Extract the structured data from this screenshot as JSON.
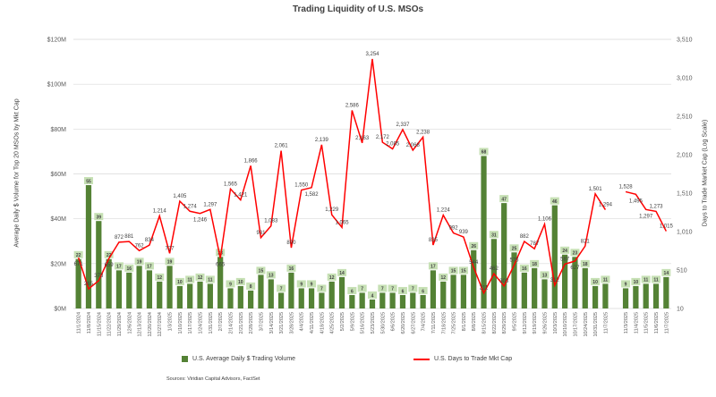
{
  "chart_data": {
    "type": "bar+line",
    "title": "Trading Liquidity of U.S. MSOs",
    "ylabel_left": "Average Daily $ Volume for Top 20 MSOs by Mkt Cap",
    "ylabel_right": "Days to Trade Market Cap (Log Scale)",
    "ylim_left": [
      0,
      120
    ],
    "ylim_right": [
      10,
      3510
    ],
    "left_ticks": [
      "$0M",
      "$20M",
      "$40M",
      "$60M",
      "$80M",
      "$100M",
      "$120M"
    ],
    "right_ticks": [
      "10",
      "510",
      "1,010",
      "1,510",
      "2,010",
      "2,510",
      "3,010",
      "3,510"
    ],
    "categories": [
      "11/1/2024",
      "11/8/2024",
      "11/15/2024",
      "11/22/2024",
      "11/29/2024",
      "12/6/2024",
      "12/13/2024",
      "12/20/2024",
      "12/27/2024",
      "1/3/2025",
      "1/10/2025",
      "1/17/2025",
      "1/24/2025",
      "1/31/2025",
      "2/7/2025",
      "2/14/2025",
      "2/21/2025",
      "2/28/2025",
      "3/7/2025",
      "3/14/2025",
      "3/21/2025",
      "3/28/2025",
      "4/4/2025",
      "4/11/2025",
      "4/18/2025",
      "4/25/2025",
      "5/2/2025",
      "5/9/2025",
      "5/16/2025",
      "5/23/2025",
      "5/30/2025",
      "6/6/2025",
      "6/20/2025",
      "6/27/2025",
      "7/4/2025",
      "7/11/2025",
      "7/18/2025",
      "7/25/2025",
      "8/1/2025",
      "8/8/2025",
      "8/15/2025",
      "8/22/2025",
      "8/29/2025",
      "9/5/2025",
      "9/12/2025",
      "9/19/2025",
      "9/26/2025",
      "10/3/2025",
      "10/10/2025",
      "10/17/2025",
      "10/24/2025",
      "10/31/2025",
      "11/7/2025",
      "",
      "11/3/2025",
      "11/4/2025",
      "11/5/2025",
      "11/6/2025",
      "11/7/2025"
    ],
    "series": [
      {
        "name": "U.S. Average Daily $ Trading Volume",
        "type": "bar",
        "axis": "left",
        "color": "#548235",
        "values": [
          22,
          55,
          39,
          22,
          17,
          16,
          19,
          17,
          12,
          19,
          10,
          11,
          12,
          11,
          23,
          9,
          10,
          8,
          15,
          13,
          7,
          16,
          9,
          9,
          7,
          12,
          14,
          6,
          7,
          4,
          7,
          7,
          6,
          7,
          6,
          17,
          12,
          15,
          15,
          26,
          68,
          31,
          47,
          25,
          16,
          18,
          13,
          46,
          24,
          23,
          18,
          10,
          11,
          null,
          9,
          10,
          11,
          11,
          14
        ]
      },
      {
        "name": "U.S. Days to Trade Mkt Cap",
        "type": "line",
        "axis": "right",
        "color": "#ff0000",
        "values": [
          671,
          265,
          373,
          659,
          872,
          881,
          762,
          834,
          1214,
          727,
          1405,
          1274,
          1246,
          1297,
          665,
          1565,
          1421,
          1866,
          931,
          1083,
          2061,
          800,
          1550,
          1582,
          2139,
          1229,
          1065,
          2586,
          2163,
          3254,
          2172,
          2085,
          2337,
          2068,
          2238,
          835,
          1224,
          992,
          939,
          544,
          211,
          462,
          303,
          576,
          882,
          787,
          1106,
          312,
          587,
          627,
          821,
          1501,
          1294,
          null,
          1528,
          1495,
          1297,
          1273,
          1015
        ]
      }
    ],
    "legend_position": "bottom",
    "grid": true
  },
  "source": "Sources: Viridian Capital Advisors, FactSet"
}
